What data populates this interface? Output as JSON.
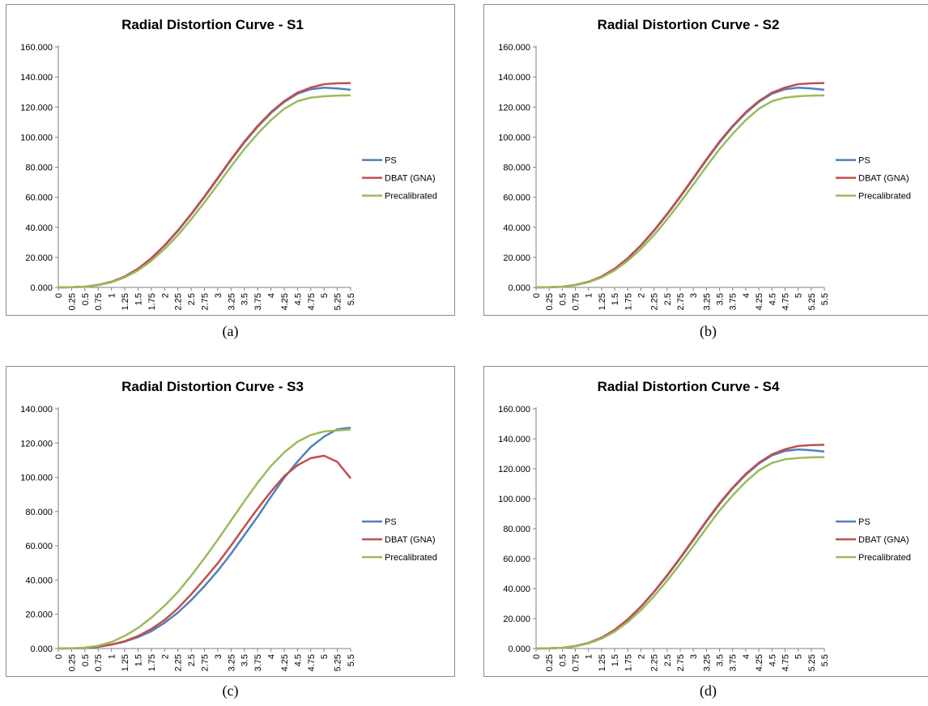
{
  "x_categories": [
    "0",
    "0.25",
    "0.5",
    "0.75",
    "1",
    "1.25",
    "1.5",
    "1.75",
    "2",
    "2.25",
    "2.5",
    "2.75",
    "3",
    "3.25",
    "3.5",
    "3.75",
    "4",
    "4.25",
    "4.5",
    "4.75",
    "5",
    "5.25",
    "5.5"
  ],
  "legend_labels": [
    "PS",
    "DBAT (GNA)",
    "Precalibrated"
  ],
  "colors": {
    "PS": "#4f81bd",
    "DBAT (GNA)": "#c0504d",
    "Precalibrated": "#9bbb59",
    "axis": "#808080"
  },
  "chart_data": [
    {
      "type": "line",
      "title": "Radial Distortion Curve - S1",
      "caption": "(a)",
      "ylim": [
        0,
        160
      ],
      "yticks": [
        0,
        20,
        40,
        60,
        80,
        100,
        120,
        140,
        160
      ],
      "ytick_labels": [
        "0.000",
        "20.000",
        "40.000",
        "60.000",
        "80.000",
        "100.000",
        "120.000",
        "140.000",
        "160.000"
      ],
      "grid": false,
      "legend": "right",
      "series": [
        {
          "name": "PS",
          "values": [
            0,
            0.1,
            0.5,
            1.6,
            3.7,
            7.2,
            12.4,
            19.3,
            27.8,
            37.6,
            48.5,
            60.2,
            72.4,
            84.8,
            96.4,
            106.9,
            116.0,
            123.4,
            128.9,
            131.9,
            132.9,
            132.4,
            131.5
          ]
        },
        {
          "name": "DBAT (GNA)",
          "values": [
            0,
            0.1,
            0.5,
            1.6,
            3.7,
            7.2,
            12.5,
            19.5,
            28.0,
            37.9,
            48.9,
            60.6,
            72.9,
            85.3,
            97.0,
            107.4,
            116.6,
            124.0,
            129.6,
            133.0,
            135.2,
            135.8,
            136.0
          ]
        },
        {
          "name": "Precalibrated",
          "values": [
            0,
            0.1,
            0.4,
            1.4,
            3.4,
            6.6,
            11.3,
            17.7,
            25.6,
            34.8,
            45.3,
            56.6,
            68.4,
            80.5,
            92.0,
            102.2,
            111.3,
            118.9,
            123.9,
            126.3,
            127.2,
            127.6,
            127.8
          ]
        }
      ]
    },
    {
      "type": "line",
      "title": "Radial Distortion Curve - S2",
      "caption": "(b)",
      "ylim": [
        0,
        160
      ],
      "yticks": [
        0,
        20,
        40,
        60,
        80,
        100,
        120,
        140,
        160
      ],
      "ytick_labels": [
        "0.000",
        "20.000",
        "40.000",
        "60.000",
        "80.000",
        "100.000",
        "120.000",
        "140.000",
        "160.000"
      ],
      "grid": false,
      "legend": "right",
      "series": [
        {
          "name": "PS",
          "values": [
            0,
            0.1,
            0.5,
            1.6,
            3.7,
            7.2,
            12.4,
            19.3,
            27.8,
            37.6,
            48.5,
            60.2,
            72.4,
            84.8,
            96.4,
            106.9,
            116.0,
            123.4,
            128.9,
            131.9,
            132.9,
            132.4,
            131.5
          ]
        },
        {
          "name": "DBAT (GNA)",
          "values": [
            0,
            0.1,
            0.5,
            1.6,
            3.7,
            7.2,
            12.5,
            19.5,
            28.0,
            37.9,
            48.9,
            60.6,
            72.9,
            85.3,
            97.0,
            107.4,
            116.6,
            124.0,
            129.6,
            133.0,
            135.2,
            135.8,
            136.0
          ]
        },
        {
          "name": "Precalibrated",
          "values": [
            0,
            0.1,
            0.4,
            1.4,
            3.4,
            6.6,
            11.3,
            17.7,
            25.6,
            34.8,
            45.3,
            56.6,
            68.4,
            80.5,
            92.0,
            102.2,
            111.3,
            118.9,
            123.9,
            126.3,
            127.2,
            127.6,
            127.8
          ]
        }
      ]
    },
    {
      "type": "line",
      "title": "Radial Distortion Curve - S3",
      "caption": "(c)",
      "ylim": [
        0,
        140
      ],
      "yticks": [
        0,
        20,
        40,
        60,
        80,
        100,
        120,
        140
      ],
      "ytick_labels": [
        "0.000",
        "20.000",
        "40.000",
        "60.000",
        "80.000",
        "100.000",
        "120.000",
        "140.000"
      ],
      "grid": false,
      "legend": "right",
      "series": [
        {
          "name": "PS",
          "values": [
            0,
            0.1,
            0.3,
            1.0,
            2.2,
            4.0,
            6.6,
            10.1,
            15.0,
            21.0,
            28.3,
            36.4,
            45.4,
            55.4,
            66.2,
            77.0,
            88.6,
            99.8,
            109.2,
            117.7,
            123.8,
            128.1,
            129.0
          ]
        },
        {
          "name": "DBAT (GNA)",
          "values": [
            0,
            0.1,
            0.3,
            1.0,
            2.3,
            4.3,
            7.3,
            11.4,
            16.7,
            23.5,
            31.7,
            40.6,
            49.8,
            60.1,
            71.1,
            81.7,
            91.6,
            100.7,
            107.1,
            111.2,
            112.6,
            109.0,
            99.4
          ]
        },
        {
          "name": "Precalibrated",
          "values": [
            0,
            0.1,
            0.5,
            1.6,
            3.8,
            7.4,
            12.0,
            18.0,
            25.0,
            33.0,
            42.5,
            52.8,
            63.5,
            74.8,
            86.0,
            96.8,
            106.6,
            114.6,
            120.8,
            124.7,
            126.8,
            127.4,
            128.0
          ]
        }
      ]
    },
    {
      "type": "line",
      "title": "Radial Distortion Curve - S4",
      "caption": "(d)",
      "ylim": [
        0,
        160
      ],
      "yticks": [
        0,
        20,
        40,
        60,
        80,
        100,
        120,
        140,
        160
      ],
      "ytick_labels": [
        "0.000",
        "20.000",
        "40.000",
        "60.000",
        "80.000",
        "100.000",
        "120.000",
        "140.000",
        "160.000"
      ],
      "grid": false,
      "legend": "right",
      "series": [
        {
          "name": "PS",
          "values": [
            0,
            0.1,
            0.5,
            1.6,
            3.7,
            7.2,
            12.4,
            19.3,
            27.8,
            37.6,
            48.5,
            60.2,
            72.4,
            84.8,
            96.4,
            106.9,
            116.0,
            123.4,
            128.9,
            131.9,
            132.9,
            132.4,
            131.5
          ]
        },
        {
          "name": "DBAT (GNA)",
          "values": [
            0,
            0.1,
            0.5,
            1.6,
            3.7,
            7.2,
            12.5,
            19.5,
            28.0,
            37.9,
            48.9,
            60.6,
            72.9,
            85.3,
            97.0,
            107.4,
            116.6,
            124.0,
            129.6,
            133.0,
            135.2,
            135.8,
            136.0
          ]
        },
        {
          "name": "Precalibrated",
          "values": [
            0,
            0.1,
            0.4,
            1.4,
            3.4,
            6.6,
            11.3,
            17.7,
            25.6,
            34.8,
            45.3,
            56.6,
            68.4,
            80.5,
            92.0,
            102.2,
            111.3,
            118.9,
            123.9,
            126.3,
            127.2,
            127.6,
            127.8
          ]
        }
      ]
    }
  ]
}
